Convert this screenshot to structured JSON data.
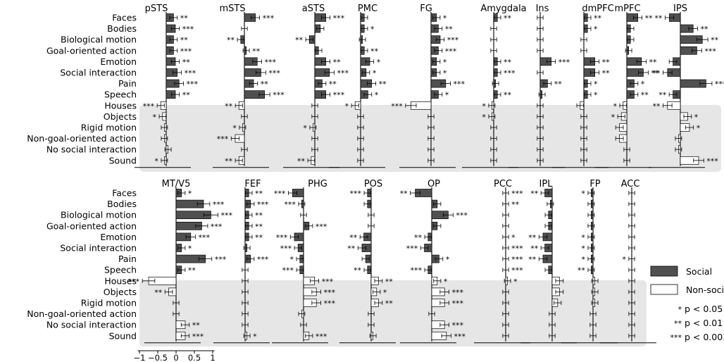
{
  "legend": {
    "social_label": "Social",
    "nonsocial_label": "Non-social",
    "p05": "p < 0.05",
    "p01": "p < 0.01",
    "p001": "p < 0.001",
    "sig05": "*",
    "sig01": "**",
    "sig001": "***"
  },
  "colors": {
    "social": "#505050",
    "nonsocial": "#ffffff",
    "shade": "#e6e6e6"
  },
  "chart_data": {
    "type": "bar",
    "orientation": "horizontal",
    "categories": [
      "Faces",
      "Bodies",
      "Biological motion",
      "Goal-oriented action",
      "Emotion",
      "Social interaction",
      "Pain",
      "Speech",
      "Houses",
      "Objects",
      "Rigid motion",
      "Non-goal-oriented action",
      "No social interaction",
      "Sound"
    ],
    "category_type": [
      "social",
      "social",
      "social",
      "social",
      "social",
      "social",
      "social",
      "social",
      "non-social",
      "non-social",
      "non-social",
      "non-social",
      "non-social",
      "non-social"
    ],
    "xlabel": "",
    "x_ticks": [
      "−1",
      "−0.5",
      "0",
      "0.5",
      "1"
    ],
    "x_tick_values": [
      -1,
      -0.5,
      0,
      0.5,
      1
    ],
    "panels": [
      {
        "row": 1,
        "title": "pSTS",
        "values": [
          0.2,
          0.25,
          0.2,
          0.2,
          0.25,
          0.3,
          0.35,
          0.25,
          -0.15,
          -0.1,
          -0.05,
          -0.05,
          0.05,
          -0.05
        ],
        "sig": [
          "**",
          "***",
          "**",
          "***",
          "**",
          "***",
          "***",
          "**",
          "***",
          "*",
          "",
          "",
          "",
          "*"
        ]
      },
      {
        "row": 1,
        "title": "mSTS",
        "values": [
          0.3,
          0.0,
          -0.1,
          0.05,
          0.35,
          0.45,
          0.25,
          0.55,
          -0.15,
          0.0,
          -0.05,
          -0.25,
          0.0,
          -0.15
        ],
        "sig": [
          "***",
          "",
          "**",
          "**",
          "***",
          "***",
          "**",
          "***",
          "**",
          "",
          "*",
          "***",
          "",
          "**"
        ]
      },
      {
        "row": 1,
        "title": "aSTS",
        "values": [
          0.3,
          0.15,
          -0.15,
          0.1,
          0.3,
          0.4,
          0.2,
          0.3,
          0.0,
          0.0,
          -0.05,
          0.0,
          0.0,
          -0.1
        ],
        "sig": [
          "***",
          "",
          "**",
          "",
          "**",
          "***",
          "**",
          "***",
          "",
          "",
          "*",
          "",
          "",
          "**"
        ]
      },
      {
        "row": 1,
        "title": "PMC",
        "values": [
          0.1,
          0.1,
          0.05,
          0.1,
          0.25,
          0.15,
          0.3,
          0.2,
          -0.15,
          0.0,
          0.0,
          0.0,
          0.0,
          0.0
        ],
        "sig": [
          "",
          "*",
          "",
          "**",
          "*",
          "*",
          "**",
          "*",
          "*",
          "",
          "",
          "",
          "",
          ""
        ],
        "sig_left": [
          false,
          false,
          false,
          false,
          false,
          false,
          false,
          false,
          true,
          false,
          false,
          false,
          false,
          false
        ]
      },
      {
        "row": 1,
        "title": "FG",
        "values": [
          0.15,
          0.2,
          0.25,
          0.2,
          0.15,
          0.15,
          0.4,
          0.2,
          -0.55,
          0.0,
          0.0,
          0.0,
          0.0,
          0.0
        ],
        "sig": [
          "*",
          "**",
          "***",
          "***",
          "*",
          "*",
          "***",
          "*",
          "***",
          "",
          "",
          "",
          "",
          ""
        ]
      },
      {
        "row": 1,
        "title": "Amygdala",
        "values": [
          0.1,
          0.0,
          0.0,
          0.0,
          0.1,
          0.1,
          0.05,
          0.1,
          -0.05,
          -0.05,
          0.0,
          0.0,
          0.0,
          0.0
        ],
        "sig": [
          "**",
          "",
          "",
          "",
          "**",
          "***",
          "",
          "**",
          "*",
          "*",
          "",
          "",
          "",
          ""
        ]
      },
      {
        "row": 1,
        "title": "Ins",
        "values": [
          0.0,
          0.0,
          0.0,
          0.0,
          0.3,
          0.0,
          0.2,
          0.05,
          0.0,
          0.0,
          0.0,
          0.0,
          0.0,
          0.0
        ],
        "sig": [
          "",
          "",
          "",
          "",
          "***",
          "",
          "**",
          "",
          "",
          "",
          "",
          "",
          "",
          ""
        ]
      },
      {
        "row": 1,
        "title": "dmPFC",
        "values": [
          0.1,
          0.1,
          0.0,
          0.0,
          0.3,
          0.3,
          0.1,
          0.1,
          -0.1,
          0.0,
          0.0,
          0.0,
          0.0,
          0.0
        ],
        "sig": [
          "**",
          "*",
          "",
          "",
          "**",
          "**",
          "*",
          "*",
          "",
          "",
          "",
          "",
          "",
          ""
        ]
      },
      {
        "row": 1,
        "title": "mPFC",
        "values": [
          0.3,
          0.1,
          0.1,
          0.05,
          0.4,
          0.45,
          0.2,
          0.2,
          -0.1,
          -0.15,
          -0.2,
          -0.2,
          0.0,
          0.0
        ],
        "sig": [
          "**",
          "",
          "",
          "",
          "**",
          "**",
          "*",
          "**",
          "*",
          "*",
          "",
          "",
          "",
          ""
        ]
      },
      {
        "row": 1,
        "title": "IPS",
        "values": [
          -0.3,
          0.35,
          0.6,
          0.45,
          -0.2,
          -0.35,
          0.7,
          -0.2,
          -0.35,
          0.2,
          0.25,
          -0.05,
          -0.05,
          0.5
        ],
        "sig": [
          "**",
          "**",
          "**",
          "***",
          "",
          "**",
          "***",
          "**",
          "**",
          "*",
          "*",
          "",
          "",
          "***"
        ]
      },
      {
        "row": 2,
        "title": "MT/V5",
        "values": [
          0.15,
          0.75,
          0.95,
          0.7,
          0.4,
          0.15,
          0.8,
          0.15,
          -0.75,
          -0.2,
          0.0,
          0.0,
          0.25,
          0.25
        ],
        "sig": [
          "*",
          "***",
          "***",
          "***",
          "***",
          "*",
          "***",
          "**",
          "***",
          "**",
          "",
          "",
          "**",
          "***"
        ]
      },
      {
        "row": 2,
        "title": "FEF",
        "values": [
          0.1,
          0.15,
          0.1,
          0.1,
          0.1,
          0.05,
          0.15,
          0.0,
          0.0,
          0.0,
          0.0,
          0.0,
          0.0,
          0.05
        ],
        "sig": [
          "**",
          "***",
          "**",
          "**",
          "**",
          "",
          "***",
          "",
          "",
          "",
          "",
          "",
          "",
          "*"
        ]
      },
      {
        "row": 2,
        "title": "PHG",
        "values": [
          -0.3,
          -0.05,
          0.0,
          0.15,
          -0.25,
          -0.15,
          -0.1,
          -0.1,
          0.3,
          0.35,
          0.35,
          -0.05,
          0.0,
          0.15
        ],
        "sig": [
          "***",
          "***",
          "",
          "***",
          "***",
          "***",
          "*",
          "***",
          "***",
          "***",
          "***",
          "",
          "",
          "***"
        ]
      },
      {
        "row": 2,
        "title": "POS",
        "values": [
          -0.1,
          -0.1,
          0.0,
          0.0,
          -0.2,
          -0.25,
          -0.15,
          -0.1,
          0.2,
          0.15,
          0.2,
          0.0,
          0.0,
          0.05
        ],
        "sig": [
          "***",
          "",
          "",
          "",
          "**",
          "**",
          "",
          "**",
          "**",
          "*",
          "**",
          "",
          "",
          ""
        ]
      },
      {
        "row": 2,
        "title": "OP",
        "values": [
          -0.45,
          0.15,
          0.45,
          0.15,
          -0.1,
          -0.2,
          0.2,
          -0.1,
          0.15,
          0.35,
          0.35,
          0.0,
          0.35,
          0.4
        ],
        "sig": [
          "**",
          "",
          "***",
          "",
          "**",
          "***",
          "*",
          "***",
          "*",
          "***",
          "***",
          "",
          "***",
          "***"
        ]
      },
      {
        "row": 2,
        "title": "PCC",
        "values": [
          0.0,
          0.0,
          0.0,
          0.0,
          0.0,
          0.0,
          0.0,
          0.0,
          0.05,
          0.0,
          0.0,
          0.0,
          0.0,
          0.0
        ],
        "sig": [
          "***",
          "**",
          "",
          "",
          "*",
          "***",
          "***",
          "***",
          "*",
          "",
          "",
          "",
          "",
          ""
        ]
      },
      {
        "row": 2,
        "title": "IPL",
        "values": [
          -0.2,
          -0.05,
          -0.1,
          -0.1,
          -0.25,
          -0.2,
          -0.25,
          -0.1,
          0.2,
          0.2,
          0.15,
          0.0,
          0.0,
          0.0
        ],
        "sig": [
          "**",
          "",
          "",
          "",
          "**",
          "**",
          "**",
          "",
          "",
          "",
          "",
          "",
          "",
          ""
        ]
      },
      {
        "row": 2,
        "title": "FP",
        "values": [
          -0.05,
          -0.05,
          -0.05,
          -0.05,
          -0.05,
          -0.05,
          -0.05,
          -0.05,
          0.05,
          0.05,
          0.05,
          0.0,
          0.0,
          0.0
        ],
        "sig": [
          "*",
          "",
          "",
          "",
          "*",
          "*",
          "*",
          "**",
          "",
          "",
          "",
          "",
          "",
          ""
        ]
      },
      {
        "row": 2,
        "title": "ACC",
        "values": [
          0.0,
          0.0,
          0.0,
          0.0,
          0.0,
          0.0,
          0.0,
          0.0,
          0.0,
          0.0,
          0.0,
          0.0,
          0.0,
          0.0
        ],
        "sig": [
          "",
          "",
          "",
          "",
          "",
          "",
          "*",
          "",
          "",
          "",
          "",
          "",
          "",
          ""
        ],
        "sig_left": [
          false,
          false,
          false,
          false,
          false,
          false,
          true,
          false,
          false,
          false,
          false,
          false,
          false,
          false
        ]
      }
    ]
  }
}
